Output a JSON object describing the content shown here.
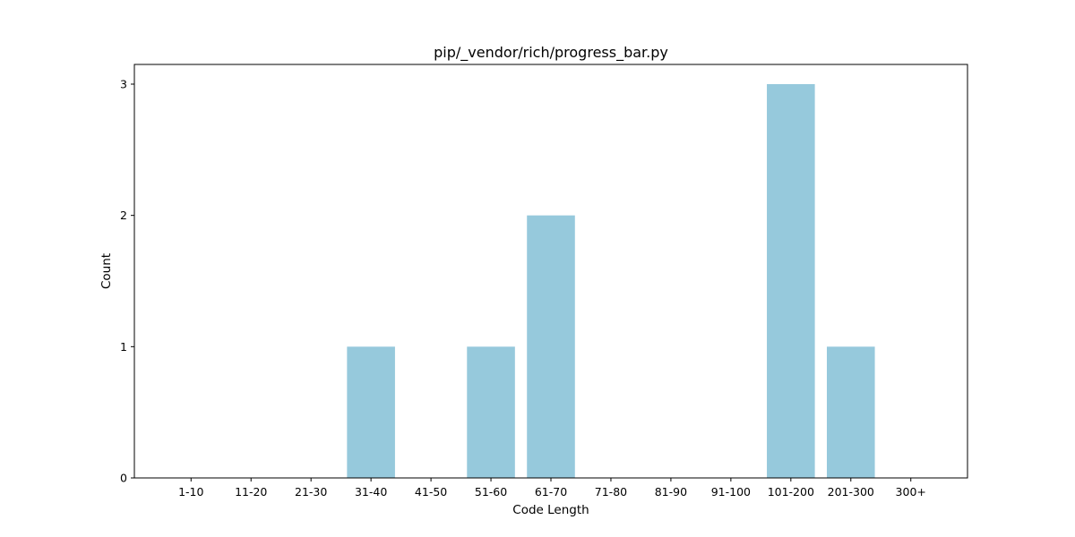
{
  "chart_data": {
    "type": "bar",
    "title": "pip/_vendor/rich/progress_bar.py",
    "xlabel": "Code Length",
    "ylabel": "Count",
    "categories": [
      "1-10",
      "11-20",
      "21-30",
      "31-40",
      "41-50",
      "51-60",
      "61-70",
      "71-80",
      "81-90",
      "91-100",
      "101-200",
      "201-300",
      "300+"
    ],
    "values": [
      0,
      0,
      0,
      1,
      0,
      1,
      2,
      0,
      0,
      0,
      3,
      1,
      0
    ],
    "yticks": [
      0,
      1,
      2,
      3
    ],
    "ylim": [
      0,
      3.15
    ],
    "grid": false,
    "bar_color": "#96c9dc"
  }
}
